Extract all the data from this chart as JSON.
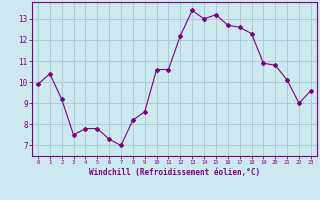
{
  "hours": [
    0,
    1,
    2,
    3,
    4,
    5,
    6,
    7,
    8,
    9,
    10,
    11,
    12,
    13,
    14,
    15,
    16,
    17,
    18,
    19,
    20,
    21,
    22,
    23
  ],
  "values": [
    9.9,
    10.4,
    9.2,
    7.5,
    7.8,
    7.8,
    7.3,
    7.0,
    8.2,
    8.6,
    10.6,
    10.6,
    12.2,
    13.4,
    13.0,
    13.2,
    12.7,
    12.6,
    12.3,
    10.9,
    10.8,
    10.1,
    9.0,
    9.6
  ],
  "line_color": "#800080",
  "marker": "D",
  "marker_size": 2.0,
  "background_color": "#cce9f0",
  "grid_color": "#aaccda",
  "xlabel": "Windchill (Refroidissement éolien,°C)",
  "ylabel_ticks": [
    7,
    8,
    9,
    10,
    11,
    12,
    13
  ],
  "xlim": [
    -0.5,
    23.5
  ],
  "ylim": [
    6.5,
    13.8
  ],
  "tick_color": "#800080",
  "label_color": "#800080",
  "spine_color": "#800080"
}
